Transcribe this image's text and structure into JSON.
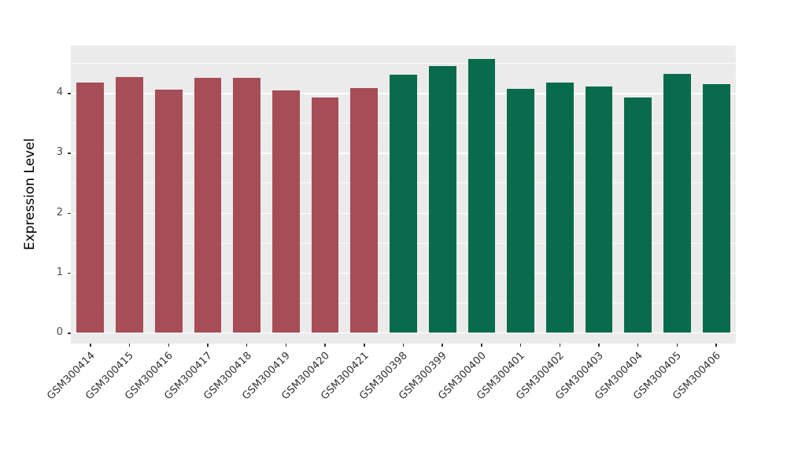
{
  "chart_data": {
    "type": "bar",
    "title": "",
    "xlabel": "",
    "ylabel": "Expression Level",
    "ylim": [
      0,
      4.79
    ],
    "yticks": [
      0,
      1,
      2,
      3,
      4
    ],
    "grid": true,
    "legend_position": "none",
    "panel_background": "#EBEBEB",
    "gridline_color": "#FFFFFF",
    "categories": [
      "GSM300414",
      "GSM300415",
      "GSM300416",
      "GSM300417",
      "GSM300418",
      "GSM300419",
      "GSM300420",
      "GSM300421",
      "GSM300398",
      "GSM300399",
      "GSM300400",
      "GSM300401",
      "GSM300402",
      "GSM300403",
      "GSM300404",
      "GSM300405",
      "GSM300406"
    ],
    "values": [
      4.17,
      4.27,
      4.05,
      4.25,
      4.25,
      4.04,
      3.93,
      4.08,
      4.3,
      4.45,
      4.57,
      4.07,
      4.17,
      4.11,
      3.92,
      4.32,
      4.15
    ],
    "group_split_index": 8,
    "colors": {
      "group1": "#A64D57",
      "group2": "#086C4C"
    }
  }
}
